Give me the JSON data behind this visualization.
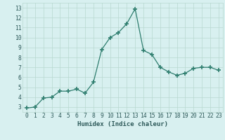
{
  "x": [
    0,
    1,
    2,
    3,
    4,
    5,
    6,
    7,
    8,
    9,
    10,
    11,
    12,
    13,
    14,
    15,
    16,
    17,
    18,
    19,
    20,
    21,
    22,
    23
  ],
  "y": [
    2.9,
    3.0,
    3.9,
    4.0,
    4.6,
    4.6,
    4.8,
    4.4,
    5.5,
    8.8,
    10.0,
    10.5,
    11.4,
    12.9,
    8.7,
    8.3,
    7.0,
    6.55,
    6.2,
    6.4,
    6.9,
    7.0,
    7.0,
    6.7
  ],
  "line_color": "#2e7d6e",
  "marker": "+",
  "marker_size": 4,
  "marker_lw": 1.2,
  "bg_color": "#d8f0f0",
  "grid_color": "#b8d8d0",
  "xlabel": "Humidex (Indice chaleur)",
  "xlim": [
    -0.5,
    23.5
  ],
  "ylim": [
    2.5,
    13.5
  ],
  "yticks": [
    3,
    4,
    5,
    6,
    7,
    8,
    9,
    10,
    11,
    12,
    13
  ],
  "xticks": [
    0,
    1,
    2,
    3,
    4,
    5,
    6,
    7,
    8,
    9,
    10,
    11,
    12,
    13,
    14,
    15,
    16,
    17,
    18,
    19,
    20,
    21,
    22,
    23
  ],
  "text_color": "#2e5a5a",
  "label_fontsize": 6.5,
  "tick_fontsize": 5.8,
  "linewidth": 0.9
}
